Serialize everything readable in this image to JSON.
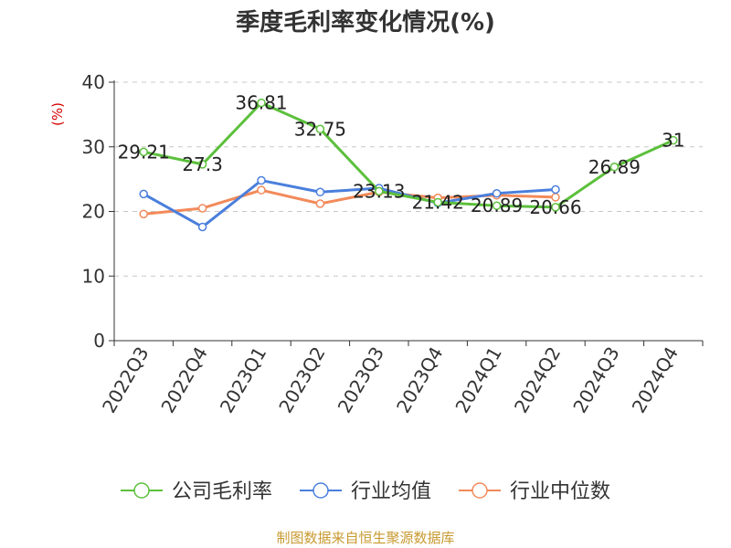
{
  "chart_data": {
    "type": "line",
    "title": "季度毛利率变化情况(%)",
    "ylabel": "(%)",
    "ylim": [
      0,
      40
    ],
    "yticks": [
      0,
      10,
      20,
      30,
      40
    ],
    "grid": "horizontal-dashed",
    "legend_position": "bottom",
    "categories": [
      "2022Q3",
      "2022Q4",
      "2023Q1",
      "2023Q2",
      "2023Q3",
      "2023Q4",
      "2024Q1",
      "2024Q2",
      "2024Q3",
      "2024Q4"
    ],
    "series": [
      {
        "name": "公司毛利率",
        "color": "#5cc03c",
        "show_labels": true,
        "labels": [
          "29.21",
          "27.3",
          "36.81",
          "32.75",
          "23.13",
          "21.42",
          "20.89",
          "20.66",
          "26.89",
          "31"
        ],
        "values": [
          29.21,
          27.3,
          36.81,
          32.75,
          23.13,
          21.42,
          20.89,
          20.66,
          26.89,
          31
        ]
      },
      {
        "name": "行业均值",
        "color": "#4a7fdc",
        "show_labels": false,
        "values": [
          22.7,
          17.6,
          24.8,
          23.0,
          23.6,
          21.3,
          22.8,
          23.4,
          null,
          null
        ]
      },
      {
        "name": "行业中位数",
        "color": "#f28a5a",
        "show_labels": false,
        "values": [
          19.6,
          20.5,
          23.3,
          21.2,
          23.0,
          22.1,
          22.5,
          22.2,
          null,
          null
        ]
      }
    ]
  },
  "source_note": "制图数据来自恒生聚源数据库"
}
